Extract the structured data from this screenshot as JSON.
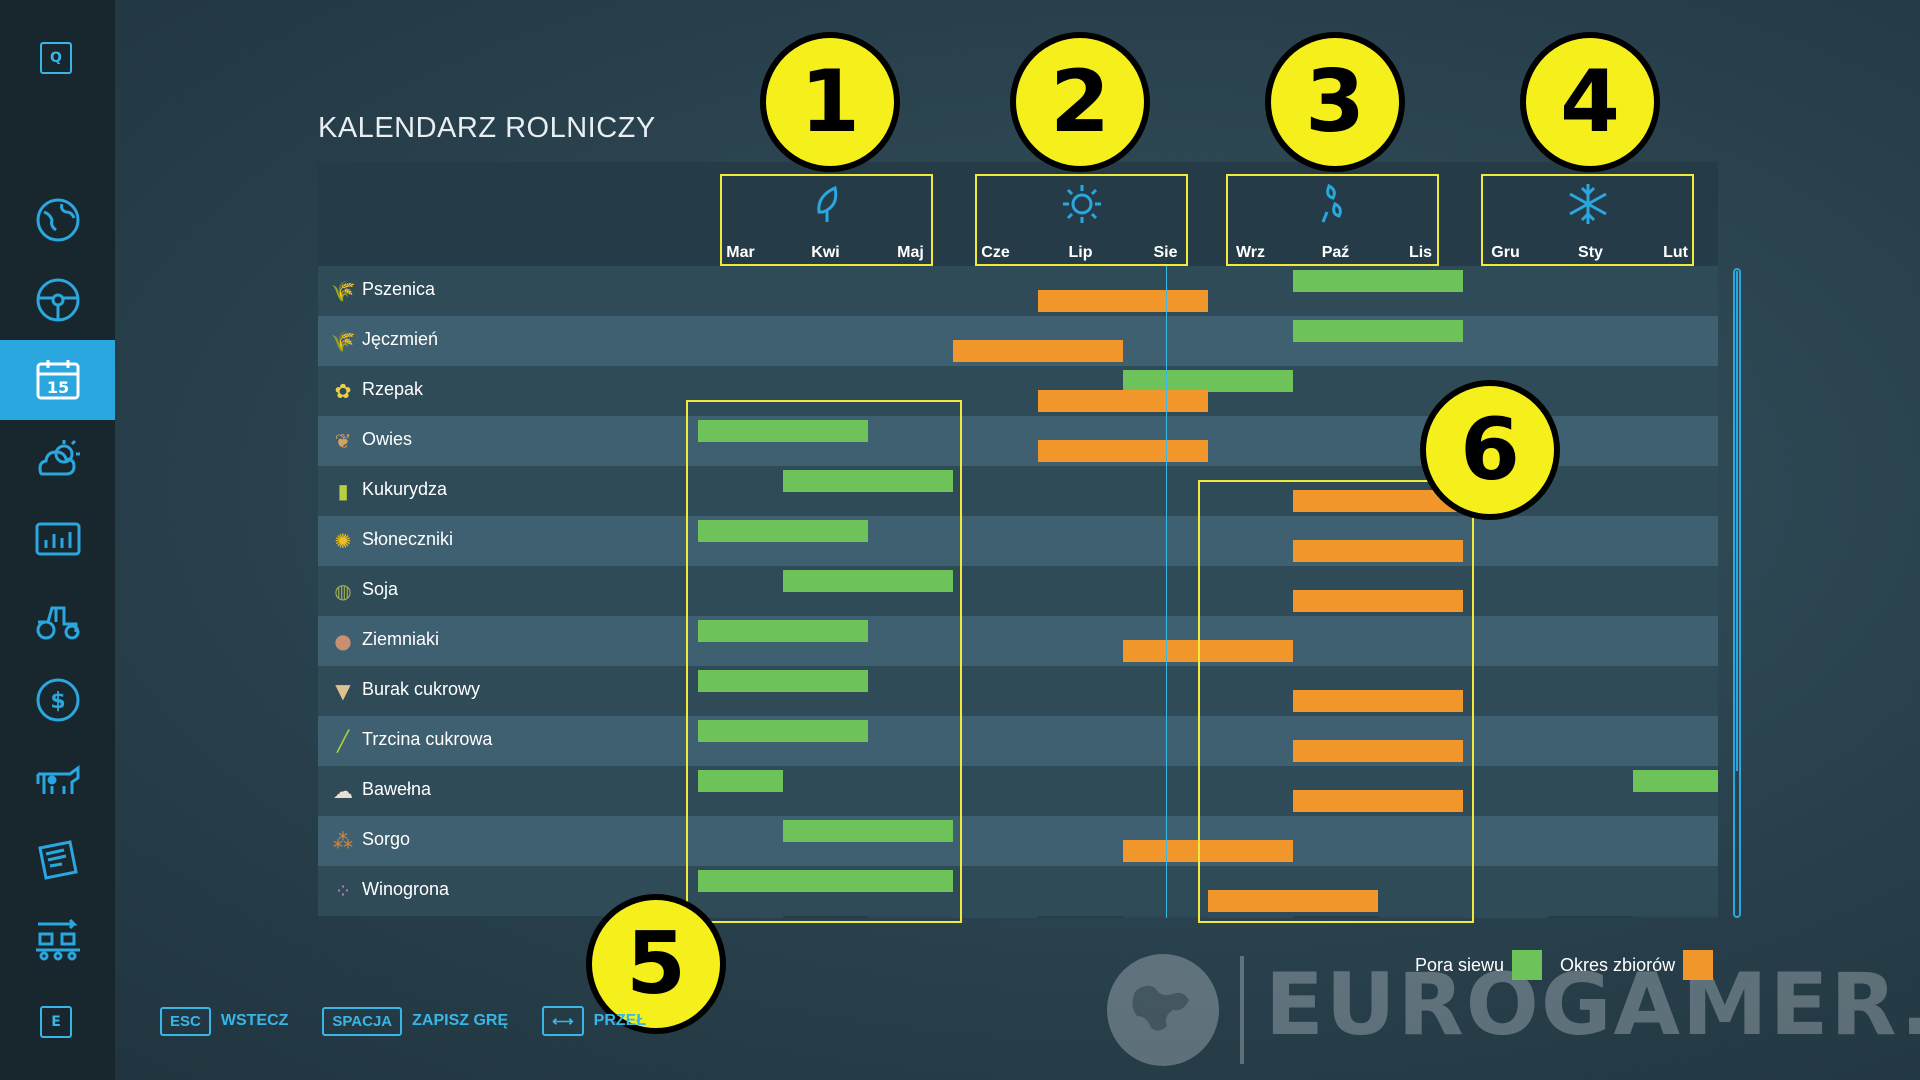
{
  "title": "KALENDARZ ROLNICZY",
  "sidebar": {
    "top_key": "Q",
    "bottom_key": "E",
    "items": [
      {
        "icon": "globe-map-icon"
      },
      {
        "icon": "steering-wheel-icon"
      },
      {
        "icon": "calendar-icon",
        "label": "15",
        "active": true
      },
      {
        "icon": "weather-icon"
      },
      {
        "icon": "statistics-icon"
      },
      {
        "icon": "tractor-icon"
      },
      {
        "icon": "dollar-icon"
      },
      {
        "icon": "cow-icon"
      },
      {
        "icon": "contracts-icon"
      },
      {
        "icon": "production-icon"
      }
    ]
  },
  "seasons": [
    {
      "name": "spring",
      "icon": "leaf-icon",
      "months": [
        "Mar",
        "Kwi",
        "Maj"
      ]
    },
    {
      "name": "summer",
      "icon": "sun-icon",
      "months": [
        "Cze",
        "Lip",
        "Sie"
      ]
    },
    {
      "name": "autumn",
      "icon": "falling-leaves-icon",
      "months": [
        "Wrz",
        "Paź",
        "Lis"
      ]
    },
    {
      "name": "winter",
      "icon": "snowflake-icon",
      "months": [
        "Gru",
        "Sty",
        "Lut"
      ]
    }
  ],
  "crops": [
    {
      "name": "Pszenica",
      "icon": "wheat-icon",
      "sow": [
        [
          7,
          9
        ]
      ],
      "harvest": [
        [
          4,
          6
        ]
      ]
    },
    {
      "name": "Jęczmień",
      "icon": "barley-icon",
      "sow": [
        [
          7,
          9
        ]
      ],
      "harvest": [
        [
          3,
          5
        ]
      ]
    },
    {
      "name": "Rzepak",
      "icon": "canola-icon",
      "sow": [
        [
          5,
          7
        ]
      ],
      "harvest": [
        [
          4,
          6
        ]
      ]
    },
    {
      "name": "Owies",
      "icon": "oat-icon",
      "sow": [
        [
          0,
          2
        ]
      ],
      "harvest": [
        [
          4,
          6
        ]
      ]
    },
    {
      "name": "Kukurydza",
      "icon": "corn-icon",
      "sow": [
        [
          1,
          3
        ]
      ],
      "harvest": [
        [
          7,
          9
        ]
      ]
    },
    {
      "name": "Słoneczniki",
      "icon": "sunflower-icon",
      "sow": [
        [
          0,
          2
        ]
      ],
      "harvest": [
        [
          7,
          9
        ]
      ]
    },
    {
      "name": "Soja",
      "icon": "soybean-icon",
      "sow": [
        [
          1,
          3
        ]
      ],
      "harvest": [
        [
          7,
          9
        ]
      ]
    },
    {
      "name": "Ziemniaki",
      "icon": "potato-icon",
      "sow": [
        [
          0,
          2
        ]
      ],
      "harvest": [
        [
          5,
          7
        ]
      ]
    },
    {
      "name": "Burak cukrowy",
      "icon": "sugar-beet-icon",
      "sow": [
        [
          0,
          2
        ]
      ],
      "harvest": [
        [
          7,
          9
        ]
      ]
    },
    {
      "name": "Trzcina cukrowa",
      "icon": "sugarcane-icon",
      "sow": [
        [
          0,
          2
        ]
      ],
      "harvest": [
        [
          7,
          9
        ]
      ]
    },
    {
      "name": "Bawełna",
      "icon": "cotton-icon",
      "sow": [
        [
          0,
          1
        ],
        [
          11,
          12
        ]
      ],
      "harvest": [
        [
          7,
          9
        ]
      ]
    },
    {
      "name": "Sorgo",
      "icon": "sorghum-icon",
      "sow": [
        [
          1,
          3
        ]
      ],
      "harvest": [
        [
          5,
          7
        ]
      ]
    },
    {
      "name": "Winogrona",
      "icon": "grapes-icon",
      "sow": [
        [
          0,
          3
        ]
      ],
      "harvest": [
        [
          6,
          8
        ]
      ]
    }
  ],
  "today_month_fraction": 5.5,
  "legend": {
    "sow_label": "Pora siewu",
    "harvest_label": "Okres zbiorów",
    "sow_color": "#6ec25a",
    "harvest_color": "#f0962a"
  },
  "footer": {
    "back_key": "ESC",
    "back_label": "WSTECZ",
    "save_key": "SPACJA",
    "save_label": "ZAPISZ GRĘ",
    "switch_label": "PRZEŁ"
  },
  "badges": [
    "1",
    "2",
    "3",
    "4",
    "5",
    "6"
  ],
  "watermark": "EUROGAMER.pl"
}
